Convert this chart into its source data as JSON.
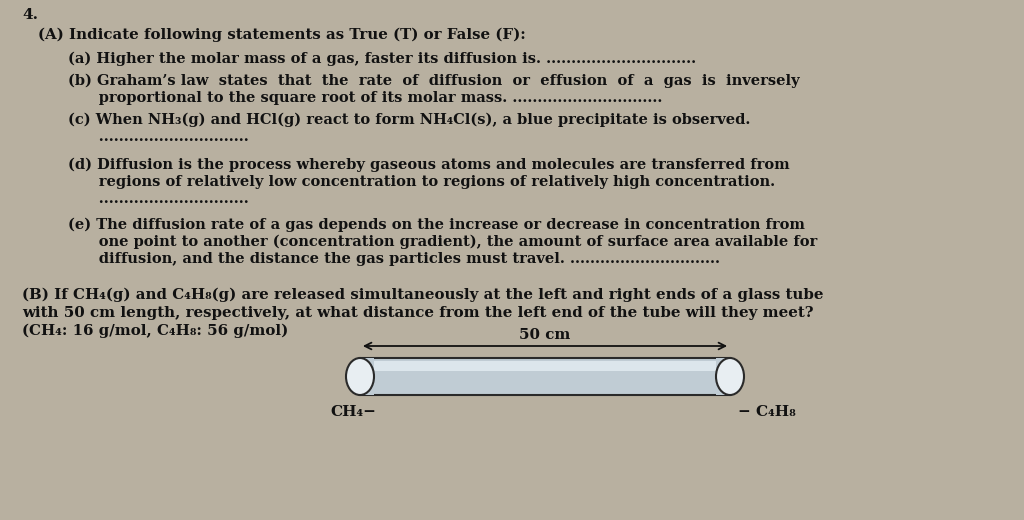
{
  "background_color": "#b8b0a0",
  "text_color": "#111111",
  "question_number": "4.",
  "section_A_header": "(A) Indicate following statements as True (T) or False (F):",
  "stmt_a": "(a) Higher the molar mass of a gas, faster its diffusion is. ..............................",
  "stmt_b1": "(b) Graham’s law  states  that  the  rate  of  diffusion  or  effusion  of  a  gas  is  inversely",
  "stmt_b2": "      proportional to the square root of its molar mass. ..............................",
  "stmt_c1": "(c) When NH₃(g) and HCl(g) react to form NH₄Cl(s), a blue precipitate is observed.",
  "stmt_c2": "      ..............................",
  "stmt_d1": "(d) Diffusion is the process whereby gaseous atoms and molecules are transferred from",
  "stmt_d2": "      regions of relatively low concentration to regions of relatively high concentration.",
  "stmt_d3": "      ..............................",
  "stmt_e1": "(e) The diffusion rate of a gas depends on the increase or decrease in concentration from",
  "stmt_e2": "      one point to another (concentration gradient), the amount of surface area available for",
  "stmt_e3": "      diffusion, and the distance the gas particles must travel. ..............................",
  "section_B1": "(B) If CH₄(g) and C₄H₈(g) are released simultaneously at the left and right ends of a glass tube",
  "section_B2": "with 50 cm length, respectively, at what distance from the left end of the tube will they meet?",
  "section_B3": "(CH₄: 16 g/mol, C₄H₈: 56 g/mol)",
  "tube_label": "50 cm",
  "left_label": "CH₄−",
  "right_label": "− C₄H₈",
  "tube_fill": "#c0ccd4",
  "tube_border": "#2a2a2a",
  "tube_highlight": "#dce6ec",
  "endcap_fill": "#e8eef2"
}
